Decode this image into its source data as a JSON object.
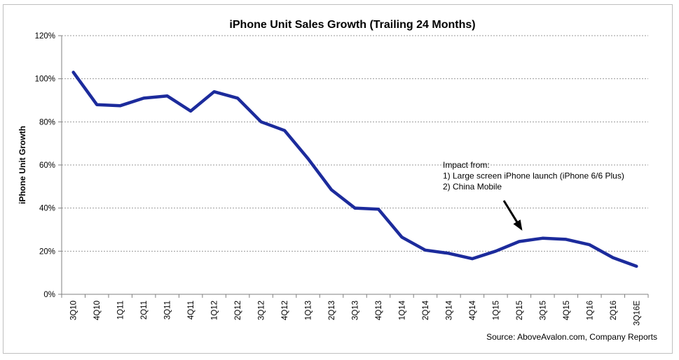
{
  "chart_data": {
    "type": "line",
    "title": "iPhone Unit Sales Growth (Trailing 24 Months)",
    "ylabel": "iPhone Unit Growth",
    "xlabel": "",
    "ylim": [
      0,
      120
    ],
    "yticks": [
      "0%",
      "20%",
      "40%",
      "60%",
      "80%",
      "100%",
      "120%"
    ],
    "grid": true,
    "categories": [
      "3Q10",
      "4Q10",
      "1Q11",
      "2Q11",
      "3Q11",
      "4Q11",
      "1Q12",
      "2Q12",
      "3Q12",
      "4Q12",
      "1Q13",
      "2Q13",
      "3Q13",
      "4Q13",
      "1Q14",
      "2Q14",
      "3Q14",
      "4Q14",
      "1Q15",
      "2Q15",
      "3Q15",
      "4Q15",
      "1Q16",
      "2Q16",
      "3Q16E"
    ],
    "series": [
      {
        "values": [
          103,
          88,
          87.5,
          91,
          92,
          85,
          94,
          91,
          80,
          76,
          63,
          48.5,
          40,
          39.5,
          26.5,
          20.5,
          19,
          16.5,
          20,
          24.5,
          26,
          25.5,
          23,
          17,
          13
        ],
        "color": "#1c2b9c"
      }
    ],
    "annotation": {
      "lines": [
        "Impact from:",
        "1) Large screen iPhone launch (iPhone 6/6 Plus)",
        "2) China Mobile"
      ],
      "arrow_target_category": "2Q15"
    },
    "source": "Source: AboveAvalon.com, Company Reports"
  }
}
